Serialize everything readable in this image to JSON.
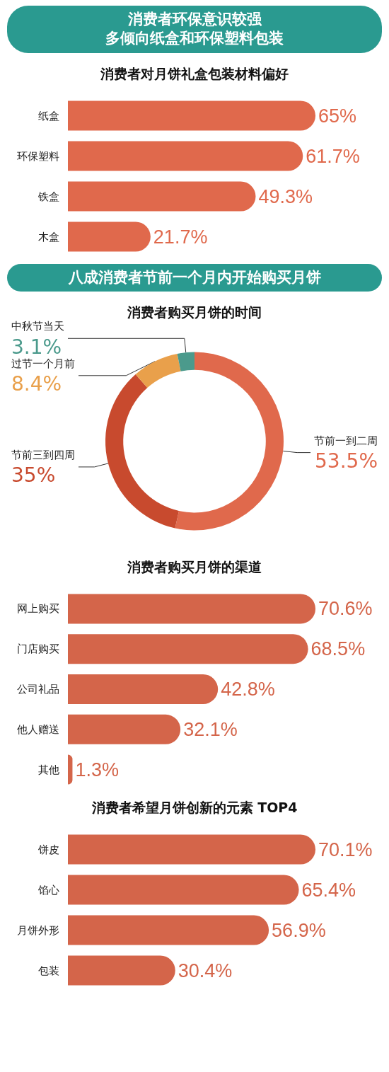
{
  "chart_data": [
    {
      "type": "bar",
      "orientation": "horizontal",
      "annotations": [
        "消费者环保意识较强",
        "多倾向纸盒和环保塑料包装"
      ],
      "title": "消费者对月饼礼盒包装材料偏好",
      "categories": [
        "纸盒",
        "环保塑料",
        "铁盒",
        "木盒"
      ],
      "values": [
        65,
        61.7,
        49.3,
        21.7
      ],
      "value_labels": [
        "65%",
        "61.7%",
        "49.3%",
        "21.7%"
      ],
      "color": "#e0694c"
    },
    {
      "type": "donut",
      "annotations": [
        "八成消费者节前一个月内开始购买月饼"
      ],
      "title": "消费者购买月饼的时间",
      "categories": [
        "节前一到二周",
        "节前三到四周",
        "过节一个月前",
        "中秋节当天"
      ],
      "values": [
        53.5,
        35,
        8.4,
        3.1
      ],
      "value_labels": [
        "53.5%",
        "35%",
        "8.4%",
        "3.1%"
      ],
      "colors": [
        "#e0694c",
        "#c84a2e",
        "#e9a04b",
        "#4b9a8c"
      ]
    },
    {
      "type": "bar",
      "orientation": "horizontal",
      "title": "消费者购买月饼的渠道",
      "categories": [
        "网上购买",
        "门店购买",
        "公司礼品",
        "他人赠送",
        "其他"
      ],
      "values": [
        70.6,
        68.5,
        42.8,
        32.1,
        1.3
      ],
      "value_labels": [
        "70.6%",
        "68.5%",
        "42.8%",
        "32.1%",
        "1.3%"
      ],
      "color": "#d4654a"
    },
    {
      "type": "bar",
      "orientation": "horizontal",
      "title": "消费者希望月饼创新的元素 TOP4",
      "categories": [
        "饼皮",
        "馅心",
        "月饼外形",
        "包装"
      ],
      "values": [
        70.1,
        65.4,
        56.9,
        30.4
      ],
      "value_labels": [
        "70.1%",
        "65.4%",
        "56.9%",
        "30.4%"
      ],
      "color": "#d4654a"
    }
  ]
}
